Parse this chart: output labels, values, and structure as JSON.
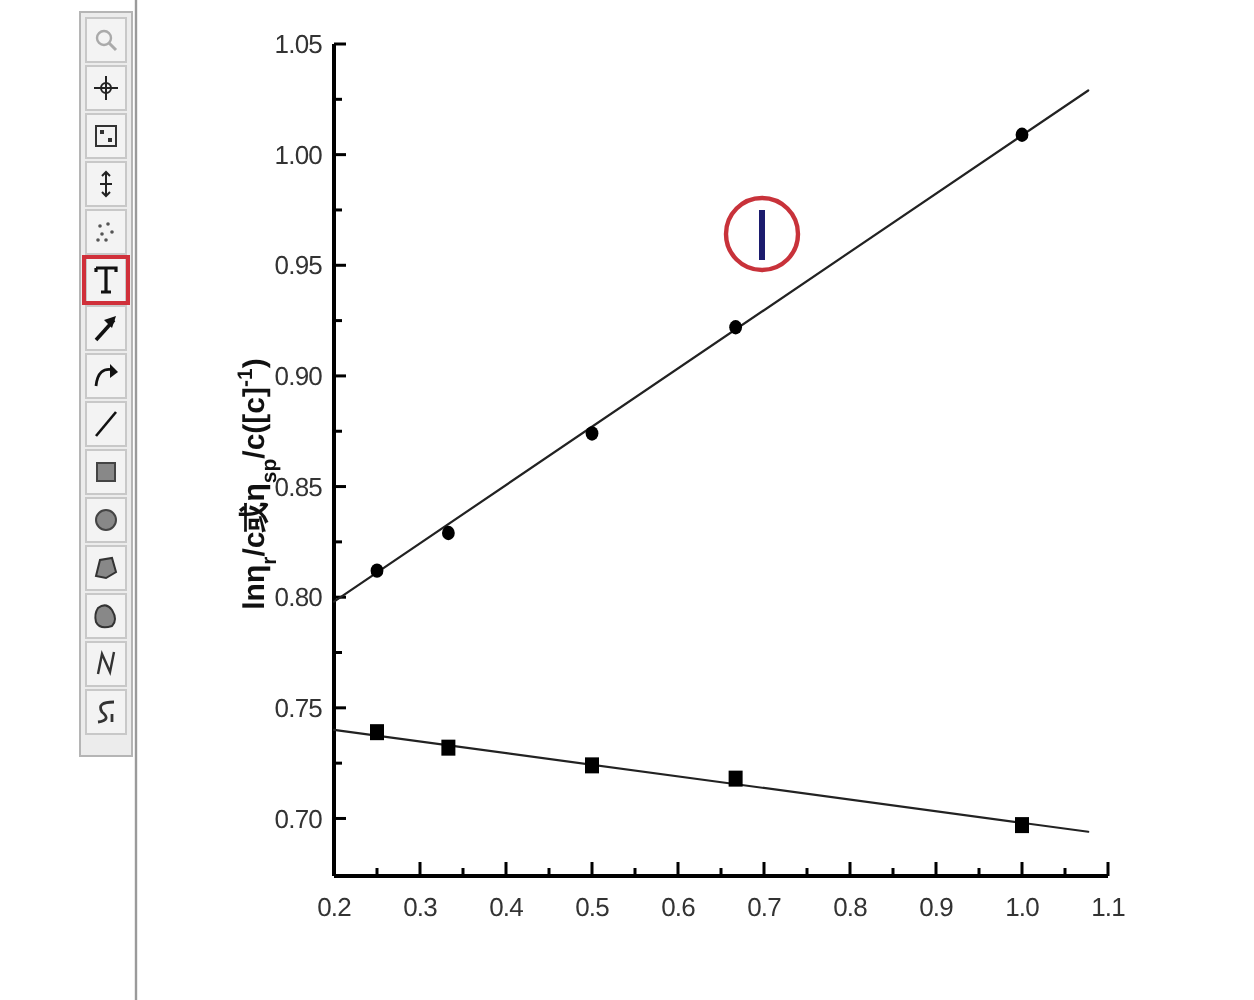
{
  "chart_data": {
    "type": "scatter",
    "ylabel": "lnη$_{r}$/c或η$_{sp}$/c([c]$^{-1}$)",
    "xlim": [
      0.2,
      1.1
    ],
    "xticks": [
      0.2,
      {
        "value": 0.25,
        "label": null
      },
      0.3,
      {
        "value": 0.35,
        "label": null
      },
      0.4,
      {
        "value": 0.45,
        "label": null
      },
      0.5,
      {
        "value": 0.55,
        "label": null
      },
      0.6,
      {
        "value": 0.65,
        "label": null
      },
      0.7,
      {
        "value": 0.75,
        "label": null
      },
      0.8,
      {
        "value": 0.85,
        "label": null
      },
      0.9,
      {
        "value": 0.95,
        "label": null
      },
      {
        "value": 1.0,
        "label": "1.0"
      },
      {
        "value": 1.05,
        "label": null
      },
      1.1
    ],
    "ylim": [
      0.674,
      1.05
    ],
    "yticks": [
      {
        "value": 0.7,
        "label": "0.70"
      },
      {
        "value": 0.725,
        "label": null
      },
      0.75,
      {
        "value": 0.775,
        "label": null
      },
      {
        "value": 0.8,
        "label": "0.80"
      },
      {
        "value": 0.825,
        "label": null
      },
      0.85,
      {
        "value": 0.875,
        "label": null
      },
      {
        "value": 0.9,
        "label": "0.90"
      },
      {
        "value": 0.925,
        "label": null
      },
      0.95,
      {
        "value": 0.975,
        "label": null
      },
      {
        "value": 1.0,
        "label": "1.00"
      },
      {
        "value": 1.025,
        "label": null
      },
      1.05
    ],
    "series": [
      {
        "marker": "circle",
        "color": "#000000",
        "x": [
          0.25,
          0.333,
          0.5,
          0.667,
          1.0
        ],
        "values": [
          0.812,
          0.829,
          0.874,
          0.922,
          1.009
        ]
      },
      {
        "type": "line",
        "color": "#222222",
        "x": [
          0.2,
          1.077
        ],
        "values": [
          0.798,
          1.029
        ]
      },
      {
        "marker": "square",
        "color": "#000000",
        "x": [
          0.25,
          0.333,
          0.5,
          0.667,
          1.0
        ],
        "values": [
          0.739,
          0.732,
          0.724,
          0.718,
          0.697
        ]
      },
      {
        "type": "line",
        "color": "#222222",
        "x": [
          0.2,
          1.077
        ],
        "values": [
          0.74,
          0.694
        ]
      }
    ]
  }
}
